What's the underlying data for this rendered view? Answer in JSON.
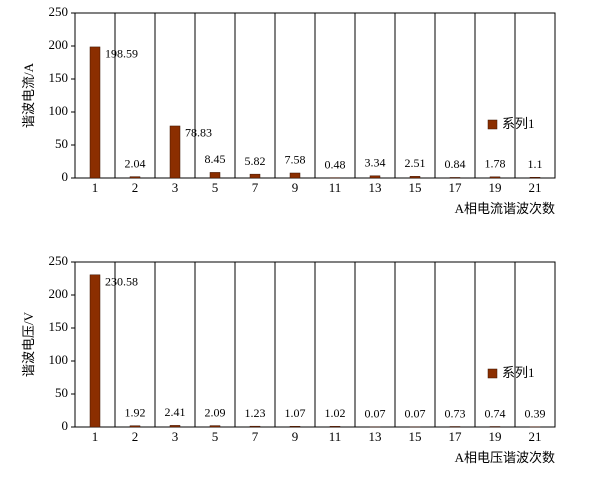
{
  "chart_data": [
    {
      "type": "bar",
      "y_label": "谐波电流/A",
      "x_label": "A相电流谐波次数",
      "categories": [
        "1",
        "2",
        "3",
        "5",
        "7",
        "9",
        "11",
        "13",
        "15",
        "17",
        "19",
        "21"
      ],
      "series": [
        {
          "name": "系列1",
          "color": "#8b2e00",
          "values": [
            198.59,
            2.04,
            78.83,
            8.45,
            5.82,
            7.58,
            0.48,
            3.34,
            2.51,
            0.84,
            1.78,
            1.1
          ]
        }
      ],
      "ylim": [
        0,
        250
      ],
      "yticks": [
        0,
        50,
        100,
        150,
        200,
        250
      ]
    },
    {
      "type": "bar",
      "y_label": "谐波电压/V",
      "x_label": "A相电压谐波次数",
      "categories": [
        "1",
        "2",
        "3",
        "5",
        "7",
        "9",
        "11",
        "13",
        "15",
        "17",
        "19",
        "21"
      ],
      "series": [
        {
          "name": "系列1",
          "color": "#8b2e00",
          "values": [
            230.58,
            1.92,
            2.41,
            2.09,
            1.23,
            1.07,
            1.02,
            0.07,
            0.07,
            0.73,
            0.74,
            0.39
          ]
        }
      ],
      "ylim": [
        0,
        250
      ],
      "yticks": [
        0,
        50,
        100,
        150,
        200,
        250
      ]
    }
  ]
}
